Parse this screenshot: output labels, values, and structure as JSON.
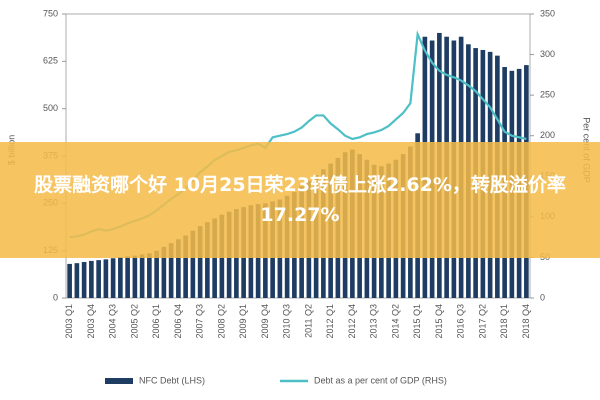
{
  "banner": {
    "text": "股票融资哪个好 10月25日荣23转债上涨2.62%，转股溢价率17.27%"
  },
  "chart_data": {
    "type": "bar-line",
    "ylabel": "$ billion",
    "y2label": "Per cent of GDP",
    "categories": [
      "2003 Q1",
      null,
      null,
      "2003 Q4",
      null,
      null,
      "2004 Q3",
      null,
      null,
      "2005 Q2",
      null,
      null,
      "2006 Q1",
      null,
      null,
      "2006 Q4",
      null,
      null,
      "2007 Q3",
      null,
      null,
      "2008 Q2",
      null,
      null,
      "2009 Q1",
      null,
      null,
      "2009 Q4",
      null,
      null,
      "2010 Q3",
      null,
      null,
      "2011 Q2",
      null,
      null,
      "2012 Q1",
      null,
      null,
      "2012 Q4",
      null,
      null,
      "2013 Q3",
      null,
      null,
      "2014 Q2",
      null,
      null,
      "2015 Q1",
      null,
      null,
      "2015 Q4",
      null,
      null,
      "2016 Q3",
      null,
      null,
      "2017 Q2",
      null,
      null,
      "2018 Q1",
      null,
      null,
      "2018 Q4"
    ],
    "series": [
      {
        "name": "NFC Debt (LHS)",
        "kind": "bar",
        "axis": "y",
        "color": "#1f3d63",
        "values": [
          90,
          92,
          95,
          98,
          100,
          102,
          105,
          108,
          110,
          112,
          115,
          118,
          125,
          135,
          145,
          155,
          165,
          178,
          190,
          200,
          210,
          220,
          228,
          235,
          240,
          245,
          248,
          250,
          255,
          260,
          270,
          280,
          295,
          310,
          325,
          340,
          355,
          370,
          385,
          392,
          380,
          365,
          352,
          348,
          355,
          365,
          380,
          400,
          435,
          690,
          680,
          700,
          690,
          680,
          690,
          670,
          660,
          655,
          650,
          640,
          610,
          600,
          605,
          615
        ]
      },
      {
        "name": "Debt as a per cent of GDP (RHS)",
        "kind": "line",
        "axis": "y2",
        "color": "#4dbfc6",
        "values": [
          75,
          76,
          78,
          82,
          85,
          83,
          85,
          88,
          92,
          95,
          98,
          102,
          108,
          115,
          122,
          128,
          135,
          145,
          155,
          162,
          170,
          175,
          180,
          182,
          185,
          188,
          190,
          185,
          198,
          200,
          202,
          205,
          210,
          218,
          225,
          225,
          215,
          208,
          200,
          196,
          198,
          202,
          204,
          207,
          212,
          220,
          228,
          240,
          325,
          305,
          290,
          280,
          275,
          272,
          268,
          262,
          255,
          245,
          235,
          220,
          205,
          200,
          198,
          196
        ]
      }
    ],
    "ylim": [
      0,
      750
    ],
    "yticks": [
      0,
      125,
      250,
      375,
      500,
      625,
      750
    ],
    "y2lim": [
      0,
      350
    ],
    "y2ticks": [
      0,
      50,
      100,
      150,
      200,
      250,
      300,
      350
    ]
  }
}
